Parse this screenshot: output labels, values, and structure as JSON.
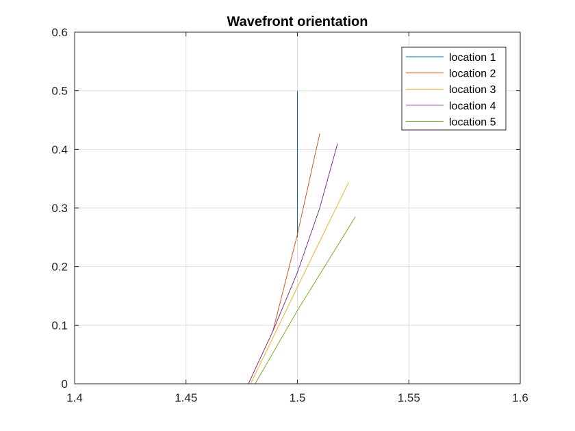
{
  "chart_data": {
    "type": "line",
    "title": "Wavefront orientation",
    "xlabel": "",
    "ylabel": "",
    "xlim": [
      1.4,
      1.6
    ],
    "ylim": [
      0,
      0.6
    ],
    "xticks": [
      1.4,
      1.45,
      1.5,
      1.55,
      1.6
    ],
    "yticks": [
      0,
      0.1,
      0.2,
      0.3,
      0.4,
      0.5,
      0.6
    ],
    "xtick_labels": [
      "1.4",
      "1.45",
      "1.5",
      "1.55",
      "1.6"
    ],
    "ytick_labels": [
      "0",
      "0.1",
      "0.2",
      "0.3",
      "0.4",
      "0.5",
      "0.6"
    ],
    "grid": true,
    "legend_position": "top-right",
    "series": [
      {
        "name": "location 1",
        "color": "#0072BD",
        "x": [
          1.5,
          1.5
        ],
        "y": [
          0.25,
          0.5
        ]
      },
      {
        "name": "location 2",
        "color": "#D95319",
        "x": [
          1.489,
          1.5,
          1.51
        ],
        "y": [
          0.09,
          0.255,
          0.427
        ]
      },
      {
        "name": "location 3",
        "color": "#EDB120",
        "x": [
          1.479,
          1.5,
          1.523
        ],
        "y": [
          0.0,
          0.165,
          0.344
        ]
      },
      {
        "name": "location 4",
        "color": "#7E2F8E",
        "x": [
          1.478,
          1.489,
          1.5,
          1.51,
          1.518
        ],
        "y": [
          0.0,
          0.09,
          0.19,
          0.3,
          0.41
        ]
      },
      {
        "name": "location 5",
        "color": "#77AC30",
        "x": [
          1.481,
          1.5,
          1.526
        ],
        "y": [
          0.0,
          0.125,
          0.285
        ]
      }
    ]
  }
}
